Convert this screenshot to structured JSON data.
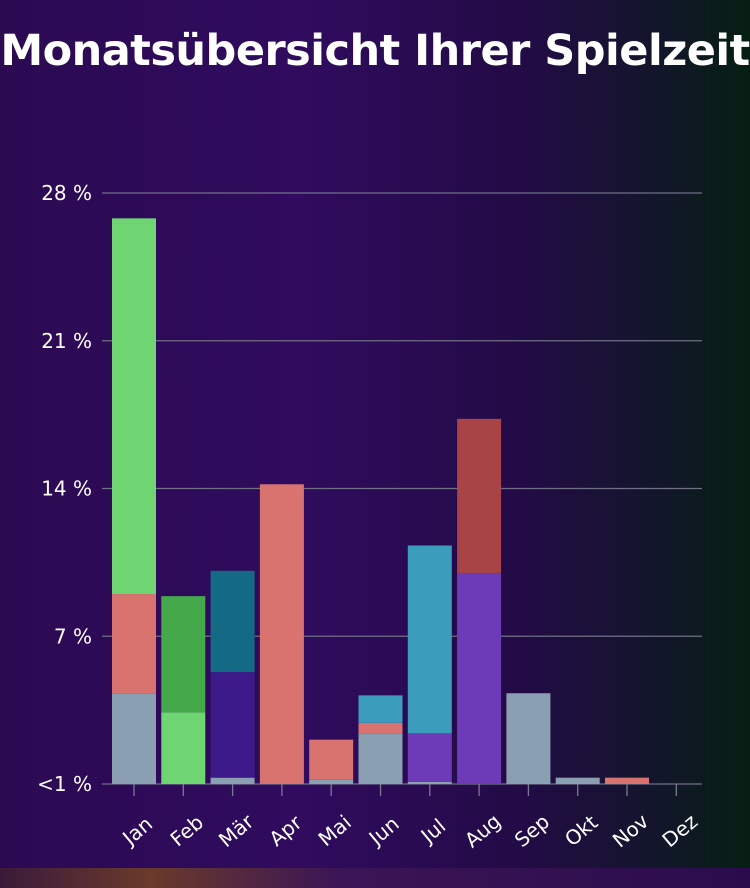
{
  "chart_data": {
    "type": "bar",
    "stacked": true,
    "title": "Monatsübersicht Ihrer Spielzeit",
    "categories": [
      "Jan",
      "Feb",
      "Mär",
      "Apr",
      "Mai",
      "Jun",
      "Jul",
      "Aug",
      "Sep",
      "Okt",
      "Nov",
      "Dez"
    ],
    "y_ticks": [
      "<1 %",
      "7 %",
      "14 %",
      "21 %",
      "28 %"
    ],
    "ylim": [
      0,
      28
    ],
    "grid": true,
    "stacks": [
      [
        {
          "value": 4.3,
          "color": "#8aa0b2"
        },
        {
          "value": 4.7,
          "color": "#d97370"
        },
        {
          "value": 17.8,
          "color": "#6fd573"
        }
      ],
      [
        {
          "value": 3.4,
          "color": "#6fd573"
        },
        {
          "value": 5.5,
          "color": "#45a84a"
        }
      ],
      [
        {
          "value": 0.3,
          "color": "#8aa0b2"
        },
        {
          "value": 5.0,
          "color": "#3c1a8a"
        },
        {
          "value": 4.8,
          "color": "#146a84"
        }
      ],
      [
        {
          "value": 14.2,
          "color": "#d97370"
        }
      ],
      [
        {
          "value": 0.2,
          "color": "#8aa0b2"
        },
        {
          "value": 1.9,
          "color": "#d97370"
        }
      ],
      [
        {
          "value": 2.4,
          "color": "#8aa0b2"
        },
        {
          "value": 0.5,
          "color": "#d97370"
        },
        {
          "value": 1.3,
          "color": "#3b9cbb"
        }
      ],
      [
        {
          "value": 0.1,
          "color": "#8aa0b2"
        },
        {
          "value": 2.3,
          "color": "#6d3bb8"
        },
        {
          "value": 8.9,
          "color": "#3b9cbb"
        }
      ],
      [
        {
          "value": 10.0,
          "color": "#6d3bb8"
        },
        {
          "value": 7.3,
          "color": "#a84346"
        }
      ],
      [
        {
          "value": 4.3,
          "color": "#8aa0b2"
        }
      ],
      [
        {
          "value": 0.3,
          "color": "#8aa0b2"
        }
      ],
      [
        {
          "value": 0.3,
          "color": "#d97370"
        }
      ],
      []
    ]
  }
}
